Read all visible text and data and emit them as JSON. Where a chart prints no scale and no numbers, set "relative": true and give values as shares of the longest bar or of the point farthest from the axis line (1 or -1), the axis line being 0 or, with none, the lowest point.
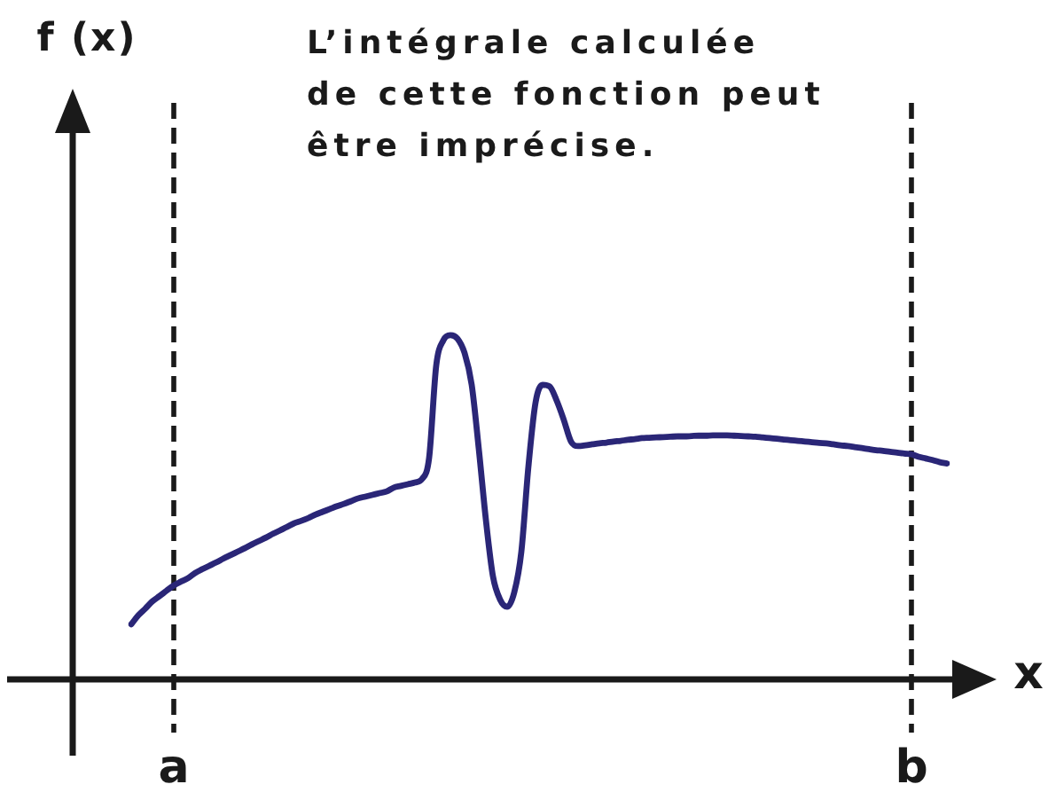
{
  "chart_data": {
    "type": "line",
    "relative": true,
    "title": "L’intégrale calculée\nde cette fonction peut\nêtre imprécise.",
    "xlabel": "x",
    "annotations": [
      "f (x)"
    ],
    "categories": [
      null,
      null,
      null,
      null,
      null,
      null,
      "a",
      null,
      null,
      null,
      null,
      null,
      null,
      null,
      null,
      null,
      null,
      null,
      null,
      null,
      null,
      null,
      null,
      null,
      null,
      null,
      null,
      null,
      null,
      null,
      null,
      null,
      null,
      null,
      null,
      null,
      null,
      null,
      null,
      null,
      null,
      null,
      null,
      null,
      null,
      null,
      null,
      null,
      null,
      null,
      null,
      null,
      null,
      null,
      null,
      null,
      null,
      null,
      null,
      null,
      null,
      null,
      null,
      null,
      null,
      null,
      null,
      null,
      null,
      null,
      null,
      null,
      null,
      null,
      null,
      null,
      null,
      null,
      null,
      null,
      null,
      null,
      null,
      null,
      null,
      null,
      null,
      null,
      null,
      null,
      null,
      null,
      null,
      null,
      null,
      null,
      null,
      null,
      null,
      null,
      null,
      null,
      null,
      null,
      null,
      null,
      null,
      null,
      null,
      null,
      "b",
      null,
      null,
      null,
      null,
      null
    ],
    "series": [
      {
        "color": "#2a2677",
        "values": [
          0.16,
          0.186,
          0.206,
          0.227,
          0.242,
          0.258,
          0.273,
          0.284,
          0.294,
          0.309,
          0.32,
          0.33,
          0.34,
          0.351,
          0.361,
          0.371,
          0.381,
          0.392,
          0.402,
          0.412,
          0.423,
          0.433,
          0.443,
          0.454,
          0.461,
          0.469,
          0.479,
          0.487,
          0.495,
          0.503,
          0.51,
          0.518,
          0.526,
          0.531,
          0.536,
          0.541,
          0.546,
          0.557,
          0.562,
          0.567,
          0.572,
          0.582,
          0.644,
          0.912,
          0.985,
          1,
          0.99,
          0.948,
          0.856,
          0.67,
          0.464,
          0.299,
          0.232,
          0.211,
          0.253,
          0.371,
          0.619,
          0.804,
          0.856,
          0.851,
          0.809,
          0.753,
          0.691,
          0.678,
          0.68,
          0.683,
          0.686,
          0.688,
          0.691,
          0.693,
          0.696,
          0.698,
          0.701,
          0.702,
          0.703,
          0.704,
          0.705,
          0.706,
          0.706,
          0.707,
          0.708,
          0.708,
          0.709,
          0.709,
          0.709,
          0.708,
          0.707,
          0.706,
          0.705,
          0.703,
          0.701,
          0.699,
          0.697,
          0.695,
          0.693,
          0.691,
          0.689,
          0.687,
          0.686,
          0.683,
          0.68,
          0.678,
          0.675,
          0.672,
          0.669,
          0.666,
          0.664,
          0.661,
          0.659,
          0.656,
          0.654,
          0.647,
          0.642,
          0.637,
          0.631,
          0.627
        ]
      }
    ],
    "ref_lines": [
      {
        "axis": "x",
        "value": "a",
        "color": "#1a1a1a",
        "line_style": "dashed"
      },
      {
        "axis": "x",
        "value": "b",
        "color": "#1a1a1a",
        "line_style": "dashed"
      }
    ]
  }
}
